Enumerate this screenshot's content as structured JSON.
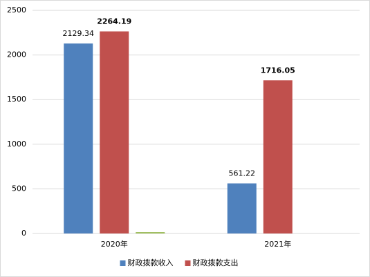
{
  "chart_data": {
    "type": "bar",
    "categories": [
      "2020年",
      "2021年"
    ],
    "series": [
      {
        "name": "财政拨款收入",
        "color": "#4f81bd",
        "values": [
          2129.34,
          561.22
        ]
      },
      {
        "name": "财政拨款支出",
        "color": "#c0504d",
        "values": [
          2264.19,
          1716.05
        ]
      },
      {
        "color": "#9bbb59",
        "values": [
          15,
          null
        ]
      }
    ],
    "ylim": [
      0,
      2500
    ],
    "yticks": [
      0,
      500,
      1000,
      1500,
      2000,
      2500
    ],
    "grid": true,
    "legend": "bottom"
  }
}
